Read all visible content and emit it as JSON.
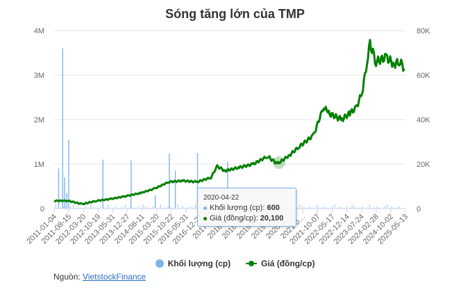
{
  "chart_data": {
    "type": "bar+line",
    "title": "Sóng tăng lớn của TMP",
    "xlabel": "",
    "ylabel_left": "Khối lượng (cp)",
    "ylabel_right": "Giá (đồng/cp)",
    "y_left": {
      "ticks": [
        "0",
        "1M",
        "2M",
        "3M",
        "4M"
      ],
      "range": [
        0,
        4000000
      ]
    },
    "y_right": {
      "ticks": [
        "0",
        "20K",
        "40K",
        "60K",
        "80K"
      ],
      "range": [
        0,
        80000
      ]
    },
    "x_tick_labels": [
      "2011-01-04",
      "2011-08-15",
      "2012-03-20",
      "2012-10-19",
      "2013-05-31",
      "2013-12-27",
      "2014-08-11",
      "2015-03-20",
      "2015-10-22",
      "2016-05-31",
      "2016-12-27",
      "2017-0…",
      "2018-0…",
      "2018-1…",
      "2019-0…",
      "2019-1…",
      "2020-0…",
      "2021-0…",
      "2021-10-07",
      "2022-05-17",
      "2022-12-14",
      "2023-07-24",
      "2024-02-28",
      "2024-10-02",
      "2025-05-13"
    ],
    "grid": true,
    "legend_position": "bottom",
    "series": [
      {
        "name": "Khối lượng (cp)",
        "type": "column",
        "color": "#7cb5ec",
        "points": [
          {
            "x": "2011-03",
            "y": 900000
          },
          {
            "x": "2011-05",
            "y": 3600000
          },
          {
            "x": "2011-06",
            "y": 700000
          },
          {
            "x": "2011-07",
            "y": 350000
          },
          {
            "x": "2011-08",
            "y": 1550000
          },
          {
            "x": "2013-01",
            "y": 1100000
          },
          {
            "x": "2014-03",
            "y": 1080000
          },
          {
            "x": "2015-03",
            "y": 300000
          },
          {
            "x": "2015-10",
            "y": 1240000
          },
          {
            "x": "2016-12",
            "y": 1250000
          },
          {
            "x": "2018-03",
            "y": 1050000
          },
          {
            "x": "2016-01",
            "y": 850000
          }
        ]
      },
      {
        "name": "Giá (đồng/cp)",
        "type": "line",
        "color": "#008000",
        "points": [
          {
            "x": "2011-01",
            "y": 3500
          },
          {
            "x": "2011-08",
            "y": 3500
          },
          {
            "x": "2012-03",
            "y": 2000
          },
          {
            "x": "2012-10",
            "y": 3500
          },
          {
            "x": "2013-05",
            "y": 4300
          },
          {
            "x": "2013-12",
            "y": 5500
          },
          {
            "x": "2014-08",
            "y": 7000
          },
          {
            "x": "2015-03",
            "y": 9000
          },
          {
            "x": "2015-10",
            "y": 12000
          },
          {
            "x": "2016-05",
            "y": 12500
          },
          {
            "x": "2016-12",
            "y": 12000
          },
          {
            "x": "2017-07",
            "y": 14000
          },
          {
            "x": "2017-10",
            "y": 19000
          },
          {
            "x": "2018-02",
            "y": 17000
          },
          {
            "x": "2018-09",
            "y": 18500
          },
          {
            "x": "2019-04",
            "y": 20000
          },
          {
            "x": "2019-11",
            "y": 23500
          },
          {
            "x": "2020-04",
            "y": 20100
          },
          {
            "x": "2020-10",
            "y": 24000
          },
          {
            "x": "2021-03",
            "y": 28000
          },
          {
            "x": "2021-10",
            "y": 33000
          },
          {
            "x": "2022-03",
            "y": 46000
          },
          {
            "x": "2022-05",
            "y": 43000
          },
          {
            "x": "2022-12",
            "y": 40000
          },
          {
            "x": "2023-04",
            "y": 43000
          },
          {
            "x": "2023-07",
            "y": 45000
          },
          {
            "x": "2023-10",
            "y": 52000
          },
          {
            "x": "2024-01",
            "y": 68000
          },
          {
            "x": "2024-02",
            "y": 74000
          },
          {
            "x": "2024-05",
            "y": 66000
          },
          {
            "x": "2024-10",
            "y": 68000
          },
          {
            "x": "2025-02",
            "y": 65000
          },
          {
            "x": "2025-05",
            "y": 66000
          },
          {
            "x": "2025-07",
            "y": 63000
          }
        ]
      }
    ],
    "annotations": [
      {
        "type": "tooltip",
        "date": "2020-04-22",
        "volume": 600,
        "price": 20100
      }
    ]
  },
  "title": "Sóng tăng lớn của TMP",
  "tooltip": {
    "date": "2020-04-22",
    "volume_label": "Khối lượng (cp): ",
    "volume_value": "600",
    "price_label": "Giá (đồng/cp): ",
    "price_value": "20,100"
  },
  "legend": {
    "volume": "Khối lượng (cp)",
    "price": "Giá (đồng/cp)"
  },
  "source": {
    "label": "Nguồn: ",
    "link_text": "VietstockFinance"
  },
  "colors": {
    "volume": "#7cb5ec",
    "price": "#008000",
    "grid": "#e6e6e6"
  }
}
